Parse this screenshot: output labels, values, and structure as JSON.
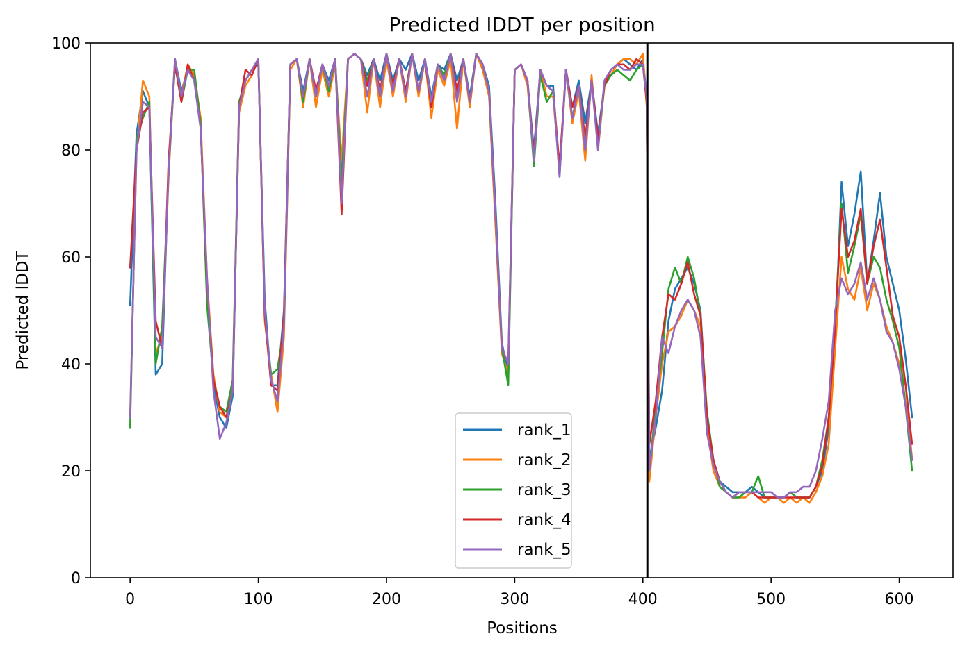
{
  "chart_data": {
    "type": "line",
    "title": "Predicted lDDT per position",
    "xlabel": "Positions",
    "ylabel": "Predicted lDDT",
    "xlim": [
      -31,
      642
    ],
    "ylim": [
      0,
      100
    ],
    "xticks": [
      0,
      100,
      200,
      300,
      400,
      500,
      600
    ],
    "yticks": [
      0,
      20,
      40,
      60,
      80,
      100
    ],
    "grid": false,
    "legend_position": "lower-center",
    "vline": {
      "x": 403.5,
      "color": "#000000"
    },
    "x": [
      0,
      5,
      10,
      15,
      20,
      25,
      30,
      35,
      40,
      45,
      50,
      55,
      60,
      65,
      70,
      75,
      80,
      85,
      90,
      95,
      100,
      105,
      110,
      115,
      120,
      125,
      130,
      135,
      140,
      145,
      150,
      155,
      160,
      165,
      170,
      175,
      180,
      185,
      190,
      195,
      200,
      205,
      210,
      215,
      220,
      225,
      230,
      235,
      240,
      245,
      250,
      255,
      260,
      265,
      270,
      275,
      280,
      285,
      290,
      295,
      300,
      305,
      310,
      315,
      320,
      325,
      330,
      335,
      340,
      345,
      350,
      355,
      360,
      365,
      370,
      375,
      380,
      385,
      390,
      395,
      400,
      403,
      405,
      410,
      415,
      420,
      425,
      430,
      435,
      440,
      445,
      450,
      455,
      460,
      465,
      470,
      475,
      480,
      485,
      490,
      495,
      500,
      505,
      510,
      515,
      520,
      525,
      530,
      535,
      540,
      545,
      550,
      555,
      560,
      565,
      570,
      575,
      580,
      585,
      590,
      595,
      600,
      605,
      610
    ],
    "series": [
      {
        "name": "rank_1",
        "color": "#1f77b4",
        "values": [
          51,
          83,
          91,
          88,
          38,
          40,
          77,
          97,
          91,
          95,
          93,
          85,
          54,
          36,
          30,
          28,
          34,
          88,
          93,
          95,
          96,
          52,
          36,
          36,
          50,
          96,
          97,
          91,
          97,
          91,
          96,
          93,
          97,
          74,
          97,
          98,
          97,
          94,
          97,
          93,
          98,
          93,
          97,
          95,
          98,
          93,
          97,
          90,
          96,
          95,
          98,
          93,
          97,
          90,
          98,
          96,
          92,
          70,
          44,
          38,
          95,
          96,
          93,
          80,
          95,
          92,
          92,
          75,
          95,
          88,
          93,
          85,
          93,
          83,
          92,
          95,
          96,
          97,
          96,
          95,
          97,
          90,
          22,
          28,
          35,
          48,
          54,
          56,
          58,
          55,
          50,
          30,
          22,
          18,
          17,
          16,
          16,
          16,
          17,
          16,
          15,
          15,
          15,
          15,
          16,
          15,
          15,
          15,
          17,
          20,
          28,
          45,
          74,
          62,
          68,
          76,
          55,
          63,
          72,
          60,
          55,
          50,
          41,
          30
        ]
      },
      {
        "name": "rank_2",
        "color": "#ff7f0e",
        "values": [
          30,
          80,
          93,
          90,
          42,
          45,
          75,
          97,
          90,
          96,
          94,
          86,
          56,
          38,
          31,
          30,
          36,
          87,
          92,
          94,
          97,
          48,
          38,
          31,
          45,
          95,
          97,
          88,
          97,
          88,
          95,
          90,
          96,
          78,
          97,
          98,
          97,
          87,
          97,
          88,
          97,
          90,
          97,
          89,
          98,
          90,
          97,
          86,
          95,
          92,
          97,
          84,
          97,
          88,
          98,
          95,
          90,
          66,
          42,
          38,
          95,
          96,
          92,
          78,
          95,
          90,
          90,
          76,
          95,
          85,
          91,
          78,
          94,
          80,
          92,
          94,
          96,
          97,
          97,
          96,
          98,
          88,
          18,
          30,
          40,
          46,
          47,
          49,
          52,
          50,
          47,
          28,
          20,
          17,
          16,
          15,
          15,
          15,
          16,
          15,
          14,
          15,
          15,
          14,
          15,
          14,
          15,
          14,
          16,
          19,
          25,
          43,
          60,
          54,
          52,
          58,
          50,
          55,
          52,
          47,
          44,
          40,
          36,
          22
        ]
      },
      {
        "name": "rank_3",
        "color": "#2ca02c",
        "values": [
          28,
          82,
          86,
          89,
          40,
          47,
          76,
          96,
          89,
          95,
          95,
          85,
          51,
          37,
          32,
          31,
          37,
          89,
          93,
          95,
          97,
          49,
          38,
          39,
          47,
          96,
          97,
          89,
          97,
          90,
          96,
          91,
          97,
          74,
          97,
          98,
          97,
          93,
          97,
          90,
          98,
          92,
          97,
          91,
          98,
          91,
          97,
          89,
          96,
          94,
          98,
          90,
          97,
          89,
          98,
          96,
          91,
          68,
          43,
          36,
          95,
          96,
          93,
          77,
          94,
          89,
          91,
          76,
          95,
          86,
          92,
          80,
          93,
          81,
          92,
          94,
          95,
          94,
          93,
          95,
          96,
          89,
          20,
          32,
          42,
          54,
          58,
          55,
          60,
          56,
          49,
          31,
          22,
          17,
          16,
          15,
          15,
          16,
          16,
          19,
          15,
          15,
          15,
          15,
          16,
          15,
          15,
          15,
          17,
          22,
          30,
          48,
          70,
          57,
          62,
          68,
          55,
          60,
          58,
          52,
          48,
          43,
          32,
          20
        ]
      },
      {
        "name": "rank_4",
        "color": "#d62728",
        "values": [
          58,
          80,
          87,
          88,
          48,
          43,
          78,
          96,
          89,
          96,
          93,
          84,
          55,
          37,
          32,
          30,
          35,
          88,
          95,
          94,
          97,
          49,
          36,
          35,
          49,
          96,
          97,
          90,
          97,
          91,
          96,
          92,
          97,
          68,
          97,
          98,
          97,
          92,
          97,
          91,
          98,
          92,
          97,
          91,
          98,
          91,
          97,
          88,
          96,
          93,
          98,
          91,
          97,
          89,
          98,
          96,
          91,
          68,
          43,
          40,
          95,
          96,
          93,
          79,
          95,
          92,
          91,
          77,
          95,
          88,
          92,
          82,
          93,
          82,
          92,
          95,
          96,
          96,
          95,
          97,
          96,
          89,
          25,
          33,
          45,
          53,
          52,
          55,
          59,
          53,
          49,
          30,
          22,
          18,
          16,
          15,
          16,
          16,
          16,
          15,
          15,
          15,
          15,
          15,
          15,
          15,
          15,
          15,
          17,
          21,
          30,
          47,
          69,
          60,
          63,
          69,
          55,
          62,
          67,
          58,
          49,
          45,
          36,
          25
        ]
      },
      {
        "name": "rank_5",
        "color": "#9467bd",
        "values": [
          30,
          80,
          89,
          88,
          45,
          43,
          76,
          97,
          90,
          95,
          93,
          84,
          56,
          35,
          26,
          29,
          35,
          88,
          93,
          95,
          97,
          50,
          37,
          33,
          47,
          96,
          97,
          90,
          97,
          90,
          96,
          92,
          97,
          70,
          97,
          98,
          97,
          90,
          97,
          90,
          98,
          91,
          97,
          90,
          98,
          91,
          97,
          89,
          96,
          93,
          98,
          89,
          97,
          89,
          98,
          96,
          91,
          68,
          43,
          40,
          95,
          96,
          93,
          78,
          95,
          92,
          91,
          75,
          95,
          86,
          92,
          80,
          93,
          80,
          93,
          95,
          96,
          95,
          95,
          96,
          96,
          90,
          20,
          30,
          45,
          42,
          47,
          50,
          52,
          50,
          45,
          27,
          21,
          18,
          16,
          15,
          16,
          16,
          16,
          16,
          16,
          16,
          15,
          15,
          16,
          16,
          17,
          17,
          20,
          26,
          33,
          50,
          56,
          53,
          55,
          59,
          52,
          56,
          52,
          46,
          44,
          39,
          32,
          22
        ]
      }
    ]
  }
}
